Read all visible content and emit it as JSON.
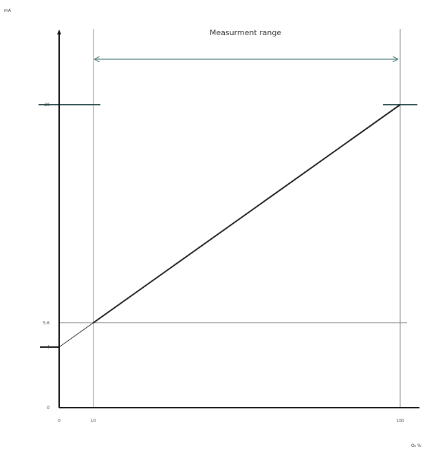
{
  "chart_data": {
    "type": "line",
    "ylabel": "mA",
    "xlabel": "O₂ %",
    "xlim": [
      0,
      100
    ],
    "ylim": [
      0,
      20
    ],
    "x_ticks": [
      {
        "value": 0,
        "label": "0"
      },
      {
        "value": 10,
        "label": "10"
      },
      {
        "value": 100,
        "label": "100"
      }
    ],
    "y_ticks": [
      {
        "value": 0,
        "label": "0"
      },
      {
        "value": 4,
        "label": "4"
      },
      {
        "value": 5.6,
        "label": "5.6"
      },
      {
        "value": 20,
        "label": "20"
      }
    ],
    "range_label": "Measurment range",
    "measurement_range": [
      10,
      100
    ],
    "series": [
      {
        "points": [
          [
            0,
            4
          ],
          [
            10,
            5.6
          ]
        ],
        "style": "thin"
      },
      {
        "points": [
          [
            10,
            5.6
          ],
          [
            100,
            20
          ]
        ],
        "style": "thick"
      }
    ],
    "colors": {
      "axis": "#111111",
      "line": "#1a1a1a",
      "guide": "#8a8a8a",
      "range_arrow": "#4f7c7c",
      "level_mark": "#2f4f4f"
    }
  }
}
